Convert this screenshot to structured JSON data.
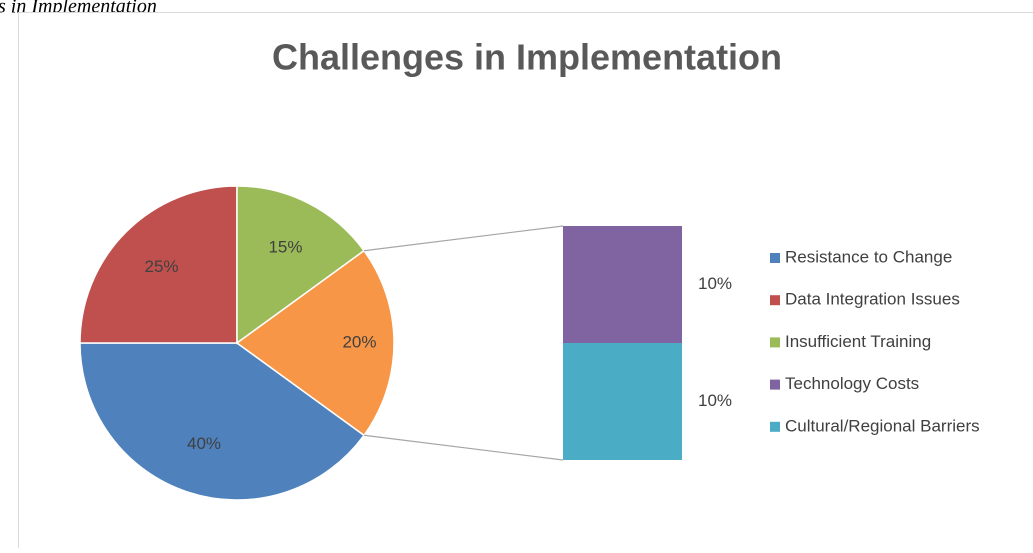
{
  "caption": "s in Implementation",
  "chart_data": {
    "type": "pie-of-bar",
    "title": "Challenges in Implementation",
    "categories": [
      "Resistance to Change",
      "Data Integration Issues",
      "Insufficient Training",
      "Technology Costs",
      "Cultural/Regional Barriers"
    ],
    "values": [
      40,
      25,
      15,
      10,
      10
    ],
    "value_labels": [
      "40%",
      "25%",
      "15%",
      "10%",
      "10%"
    ],
    "colors": [
      "#4f81bd",
      "#c0504d",
      "#9bbb59",
      "#8064a2",
      "#4bacc6"
    ],
    "bar_count": 2,
    "combined_value": 20,
    "combined_label": "20%",
    "combined_color": "#f79646",
    "legend": "right"
  }
}
